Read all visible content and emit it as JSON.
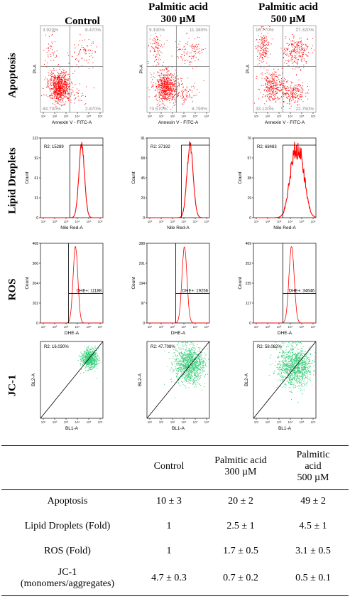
{
  "columns": [
    {
      "label": "Control"
    },
    {
      "label": "Palmitic acid\n300 µM"
    },
    {
      "label": "Palmitic acid\n500 µM"
    }
  ],
  "rows": [
    {
      "label": "Apoptosis",
      "xlabel": "Annexin V - FITC-A",
      "ylabel": "PI-A",
      "panels": [
        {
          "q_ul": "3.920%",
          "q_ur": "8.470%",
          "q_ll": "84.700%",
          "q_lr": "2.870%"
        },
        {
          "q_ul": "9.190%",
          "q_ur": "11.380%",
          "q_ll": "70.570%",
          "q_lr": "8.790%"
        },
        {
          "q_ul": "16.770%",
          "q_ur": "27.320%",
          "q_ll": "33.120%",
          "q_lr": "22.750%"
        }
      ]
    },
    {
      "label": "Lipid Droplets",
      "xlabel": "Nile Red-A",
      "ylabel": "Count",
      "panels": [
        {
          "gate": "R2: 15289",
          "ymax": "123",
          "ticks": [
            "123",
            "92",
            "61",
            "31",
            "0"
          ]
        },
        {
          "gate": "R2: 37192",
          "ymax": "91",
          "ticks": [
            "91",
            "68",
            "45",
            "23",
            "0"
          ]
        },
        {
          "gate": "R2: 68483",
          "ymax": "76",
          "ticks": [
            "76",
            "57",
            "38",
            "19",
            "0"
          ]
        }
      ]
    },
    {
      "label": "ROS",
      "xlabel": "DHE-A",
      "ylabel": "Count",
      "panels": [
        {
          "gate": "DHE+: 11188",
          "ymax": "408",
          "ticks": [
            "408",
            "306",
            "204",
            "102",
            "0"
          ]
        },
        {
          "gate": "DHE+: 19256",
          "ymax": "388",
          "ticks": [
            "388",
            "291",
            "194",
            "97",
            "0"
          ]
        },
        {
          "gate": "DHE+: 34646",
          "ymax": "469",
          "ticks": [
            "469",
            "352",
            "235",
            "117",
            "0"
          ]
        }
      ]
    },
    {
      "label": "JC-1",
      "xlabel": "BL1-A",
      "ylabel": "BL2-A",
      "panels": [
        {
          "gate": "R2: 16.030%"
        },
        {
          "gate": "R2: 47.708%"
        },
        {
          "gate": "R2: 58.082%"
        }
      ]
    }
  ],
  "log_ticks": [
    "10¹",
    "10²",
    "10³",
    "10⁴",
    "10⁵",
    "10⁶"
  ],
  "colors": {
    "apoptosis": "#ff0000",
    "histogram": "#ff0000",
    "jc1": "#33cc77"
  },
  "chart_data": {
    "type": "table",
    "columns": [
      "",
      "Control",
      "Palmitic acid\n300 µM",
      "Palmitic acid\n500 µM"
    ],
    "rows": [
      {
        "label": "Apoptosis",
        "values": [
          "10 ± 3",
          "20 ± 2",
          "49 ± 2"
        ]
      },
      {
        "label": "Lipid Droplets (Fold)",
        "values": [
          "1",
          "2.5 ± 1",
          "4.5 ± 1"
        ]
      },
      {
        "label": "ROS (Fold)",
        "values": [
          "1",
          "1.7 ± 0.5",
          "3.1 ± 0.5"
        ]
      },
      {
        "label": "JC-1\n(monomers/aggregates)",
        "values": [
          "4.7 ± 0.3",
          "0.7 ± 0.2",
          "0.5 ± 0.1"
        ]
      }
    ]
  }
}
